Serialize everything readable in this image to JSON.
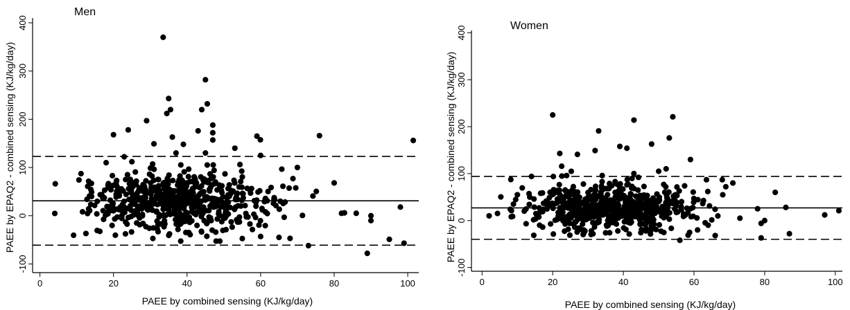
{
  "chart_data": [
    {
      "type": "scatter",
      "title": "Men",
      "xlabel": "PAEE by combined sensing (KJ/kg/day)",
      "ylabel": "PAEE by EPAQ2 - combined sensing (KJ/kg/day)",
      "xlim": [
        -2,
        103
      ],
      "ylim": [
        -118,
        410
      ],
      "xticks": [
        "0",
        "20",
        "40",
        "60",
        "80",
        "100"
      ],
      "yticks": [
        "-100",
        "0",
        "100",
        "200",
        "300",
        "400"
      ],
      "reference_lines": {
        "mean_difference": 31,
        "upper_limit": 123,
        "lower_limit": -61
      },
      "cloud": {
        "count": 620,
        "x_center": 38,
        "x_spread": 12,
        "y_center": 31,
        "y_spread": 38,
        "seed": 11
      },
      "points": [
        [
          33.5,
          370
        ],
        [
          45,
          282
        ],
        [
          35,
          243
        ],
        [
          45.5,
          232
        ],
        [
          35.5,
          220
        ],
        [
          34.5,
          212
        ],
        [
          44,
          220
        ],
        [
          47,
          188
        ],
        [
          29,
          197
        ],
        [
          43,
          176
        ],
        [
          47,
          172
        ],
        [
          20,
          168
        ],
        [
          24,
          178
        ],
        [
          59,
          165
        ],
        [
          76,
          166
        ],
        [
          101.5,
          156
        ],
        [
          36,
          163
        ],
        [
          47,
          157
        ],
        [
          31,
          149
        ],
        [
          39,
          148
        ],
        [
          53,
          140
        ],
        [
          60,
          125
        ],
        [
          37,
          130
        ],
        [
          45,
          130
        ],
        [
          70,
          100
        ],
        [
          80,
          68
        ],
        [
          82,
          5
        ],
        [
          86,
          5
        ],
        [
          90,
          0
        ],
        [
          89,
          -78
        ],
        [
          95,
          -49
        ],
        [
          98,
          18
        ],
        [
          99,
          -57
        ],
        [
          73,
          -62
        ],
        [
          90,
          -10
        ],
        [
          65,
          -45
        ],
        [
          60,
          -43
        ],
        [
          68,
          -47
        ],
        [
          25,
          112
        ],
        [
          18,
          110
        ],
        [
          14,
          67
        ]
      ]
    },
    {
      "type": "scatter",
      "title": "Women",
      "xlabel": "PAEE by combined sensing (KJ/kg/day)",
      "ylabel": "PAEE by EPAQ2 - combined sensing (KJ/kg/day)",
      "xlim": [
        -3,
        102
      ],
      "ylim": [
        -108,
        405
      ],
      "xticks": [
        "0",
        "20",
        "40",
        "60",
        "80",
        "100"
      ],
      "yticks": [
        "-100",
        "0",
        "100",
        "200",
        "300",
        "400"
      ],
      "reference_lines": {
        "mean_difference": 27,
        "upper_limit": 94,
        "lower_limit": -40
      },
      "cloud": {
        "count": 680,
        "x_center": 37,
        "x_spread": 11,
        "y_center": 27,
        "y_spread": 30,
        "seed": 29
      },
      "points": [
        [
          20,
          225
        ],
        [
          54,
          221
        ],
        [
          43,
          214
        ],
        [
          33,
          191
        ],
        [
          53,
          176
        ],
        [
          48,
          163
        ],
        [
          39,
          158
        ],
        [
          41,
          154
        ],
        [
          32,
          149
        ],
        [
          59,
          130
        ],
        [
          27,
          141
        ],
        [
          22,
          143
        ],
        [
          50,
          105
        ],
        [
          68,
          87
        ],
        [
          69,
          72
        ],
        [
          71,
          80
        ],
        [
          83,
          60
        ],
        [
          86,
          28
        ],
        [
          97,
          12
        ],
        [
          101,
          21
        ],
        [
          78,
          25
        ],
        [
          80,
          0
        ],
        [
          79,
          -6
        ],
        [
          87,
          -28
        ],
        [
          79,
          -37
        ],
        [
          56,
          -42
        ],
        [
          61,
          -20
        ],
        [
          66,
          -32
        ],
        [
          2,
          10
        ],
        [
          8,
          24
        ],
        [
          10,
          55
        ],
        [
          14,
          94
        ],
        [
          73,
          5
        ],
        [
          64,
          -10
        ]
      ]
    }
  ]
}
